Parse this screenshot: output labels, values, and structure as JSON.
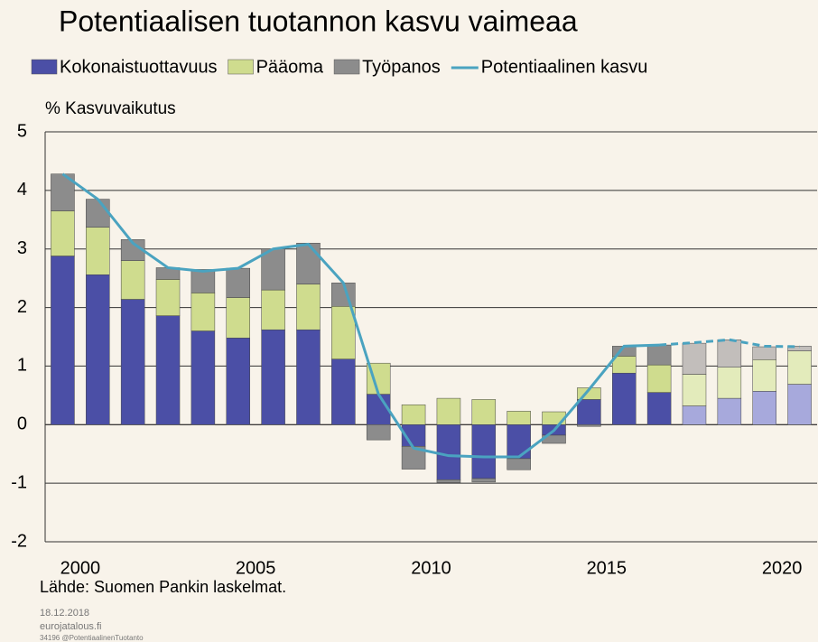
{
  "chart_data": {
    "type": "stacked_bar_line",
    "title": "Potentiaalisen tuotannon kasvu vaimeaa",
    "y_label": "% Kasvuvaikutus",
    "source": "Lähde: Suomen Pankin laskelmat.",
    "footer": [
      "18.12.2018",
      "eurojatalous.fi",
      "34196 @PotentiaalinenTuotanto"
    ],
    "categories": [
      "2000",
      null,
      null,
      null,
      null,
      "2005",
      null,
      null,
      null,
      null,
      "2010",
      null,
      null,
      null,
      null,
      "2015",
      null,
      null,
      null,
      null,
      "2020",
      null
    ],
    "series": [
      {
        "name": "Kokonaistuottavuus",
        "color": "#4b4fa6",
        "forecast_color": "#a7a9dc",
        "values": [
          2.88,
          2.56,
          2.14,
          1.86,
          1.6,
          1.48,
          1.62,
          1.62,
          1.12,
          0.52,
          -0.37,
          -0.94,
          -0.92,
          -0.58,
          -0.18,
          0.43,
          0.88,
          0.55,
          0.32,
          0.45,
          0.57,
          0.69
        ]
      },
      {
        "name": "Pääoma",
        "color": "#cfdc8e",
        "forecast_color": "#e3ebbb",
        "values": [
          0.77,
          0.81,
          0.66,
          0.62,
          0.65,
          0.69,
          0.68,
          0.78,
          0.9,
          0.53,
          0.34,
          0.45,
          0.43,
          0.23,
          0.22,
          0.2,
          0.29,
          0.47,
          0.54,
          0.53,
          0.54,
          0.57
        ]
      },
      {
        "name": "Työpanos",
        "color": "#8c8c8c",
        "forecast_color": "#c2bebb",
        "values": [
          0.63,
          0.48,
          0.36,
          0.2,
          0.4,
          0.5,
          0.7,
          0.7,
          0.4,
          -0.26,
          -0.39,
          -0.05,
          -0.06,
          -0.19,
          -0.14,
          -0.03,
          0.17,
          0.34,
          0.53,
          0.47,
          0.22,
          0.08
        ]
      }
    ],
    "line": {
      "name": "Potentiaalinen kasvu",
      "color": "#4aa3c0",
      "values": [
        4.28,
        3.85,
        3.1,
        2.68,
        2.62,
        2.67,
        3.0,
        3.08,
        2.42,
        0.52,
        -0.4,
        -0.53,
        -0.55,
        -0.55,
        -0.1,
        0.6,
        1.34,
        1.36,
        1.4,
        1.45,
        1.34,
        1.33
      ]
    },
    "forecast_start": 18,
    "ylim": [
      -2,
      5
    ],
    "yticks": [
      -2,
      -1,
      0,
      1,
      2,
      3,
      4,
      5
    ],
    "grid": true
  }
}
